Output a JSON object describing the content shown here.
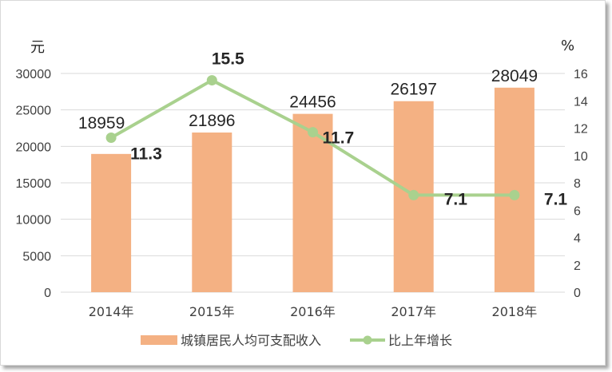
{
  "chart_data": {
    "type": "bar+line",
    "categories": [
      "2014年",
      "2015年",
      "2016年",
      "2017年",
      "2018年"
    ],
    "series": [
      {
        "name": "城镇居民人均可支配收入",
        "type": "bar",
        "axis": "left",
        "values": [
          18959,
          21896,
          24456,
          26197,
          28049
        ],
        "color": "#F4B183"
      },
      {
        "name": "比上年增长",
        "type": "line",
        "axis": "right",
        "values": [
          11.3,
          15.5,
          11.7,
          7.1,
          7.1
        ],
        "color": "#A9D18E"
      }
    ],
    "y_left": {
      "unit": "元",
      "ylim": [
        0,
        30000
      ],
      "ticks": [
        "0",
        "5000",
        "10000",
        "15000",
        "20000",
        "25000",
        "30000"
      ]
    },
    "y_right": {
      "unit": "%",
      "ylim": [
        0,
        16
      ],
      "ticks": [
        "0",
        "2",
        "4",
        "6",
        "8",
        "10",
        "12",
        "14",
        "16"
      ]
    },
    "bar_labels": [
      "18959",
      "21896",
      "24456",
      "26197",
      "28049"
    ],
    "line_labels": [
      "11.3",
      "15.5",
      "11.7",
      "7.1",
      "7.1"
    ],
    "grid": true,
    "legend_position": "bottom"
  }
}
